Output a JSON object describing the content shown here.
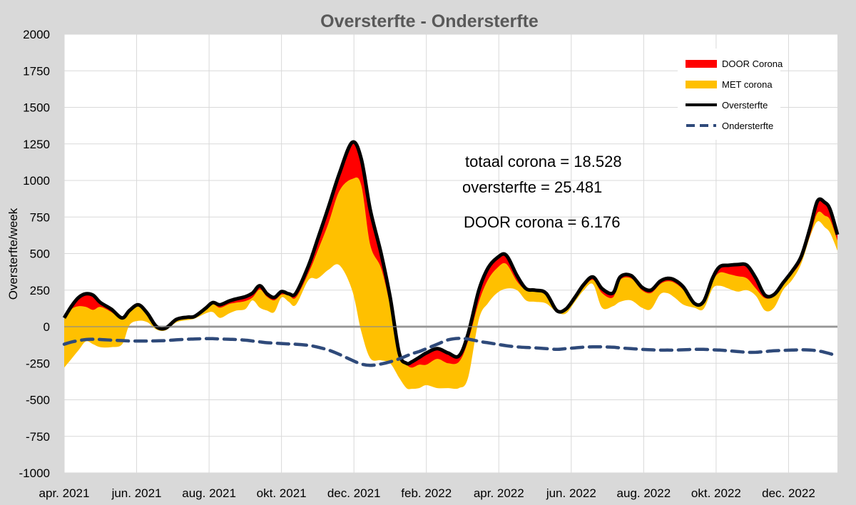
{
  "chart_data": {
    "type": "area",
    "title": "Oversterfte - Ondersterfte",
    "ylabel": "Oversterfte/week",
    "xlabel": "",
    "ylim": [
      -1000,
      2000
    ],
    "xlim": [
      0,
      21.35
    ],
    "yticks": [
      -1000,
      -750,
      -500,
      -250,
      0,
      250,
      500,
      750,
      1000,
      1250,
      1500,
      1750,
      2000
    ],
    "xticks": [
      {
        "pos": 0,
        "label": "apr. 2021"
      },
      {
        "pos": 2,
        "label": "jun. 2021"
      },
      {
        "pos": 4,
        "label": "aug. 2021"
      },
      {
        "pos": 6,
        "label": "okt. 2021"
      },
      {
        "pos": 8,
        "label": "dec. 2021"
      },
      {
        "pos": 10,
        "label": "feb. 2022"
      },
      {
        "pos": 12,
        "label": "apr. 2022"
      },
      {
        "pos": 14,
        "label": "jun. 2022"
      },
      {
        "pos": 16,
        "label": "aug. 2022"
      },
      {
        "pos": 18,
        "label": "okt. 2022"
      },
      {
        "pos": 20,
        "label": "dec. 2022"
      }
    ],
    "grid": true,
    "legend_position": "top-right",
    "legend": [
      {
        "label": "DOOR Corona",
        "color": "#ff0000",
        "style": "area"
      },
      {
        "label": "MET corona",
        "color": "#ffc000",
        "style": "area"
      },
      {
        "label": "Oversterfte",
        "color": "#000000",
        "style": "line"
      },
      {
        "label": "Ondersterfte",
        "color": "#2f4a7a",
        "style": "dashed"
      }
    ],
    "annotations": [
      "totaal corona = 18.528",
      "oversterfte = 25.481",
      "DOOR corona = 6.176"
    ],
    "x": [
      0,
      0.2,
      0.4,
      0.6,
      0.8,
      1.0,
      1.3,
      1.6,
      1.8,
      2.05,
      2.3,
      2.55,
      2.8,
      3.1,
      3.4,
      3.6,
      3.9,
      4.1,
      4.3,
      4.55,
      4.75,
      5.0,
      5.2,
      5.4,
      5.6,
      5.8,
      6.0,
      6.2,
      6.4,
      6.75,
      7.0,
      7.3,
      7.6,
      7.95,
      8.2,
      8.45,
      8.75,
      9.0,
      9.25,
      9.45,
      9.6,
      9.8,
      10.0,
      10.3,
      10.6,
      10.9,
      11.15,
      11.45,
      11.7,
      11.95,
      12.2,
      12.5,
      12.75,
      13.0,
      13.3,
      13.6,
      13.85,
      14.1,
      14.35,
      14.6,
      14.85,
      15.15,
      15.35,
      15.65,
      15.95,
      16.2,
      16.45,
      16.65,
      16.85,
      17.1,
      17.4,
      17.65,
      17.9,
      18.1,
      18.35,
      18.6,
      18.85,
      19.1,
      19.35,
      19.6,
      19.85,
      20.1,
      20.35,
      20.6,
      20.8,
      21.0,
      21.15,
      21.35
    ],
    "series": [
      {
        "name": "Oversterfte",
        "values": [
          60,
          140,
          200,
          225,
          215,
          165,
          120,
          60,
          110,
          150,
          90,
          0,
          -10,
          50,
          65,
          70,
          125,
          165,
          150,
          175,
          190,
          205,
          230,
          280,
          225,
          200,
          240,
          225,
          230,
          420,
          600,
          820,
          1050,
          1260,
          1150,
          800,
          500,
          200,
          -180,
          -250,
          -240,
          -210,
          -180,
          -150,
          -180,
          -200,
          -50,
          250,
          400,
          470,
          490,
          350,
          260,
          250,
          230,
          110,
          120,
          200,
          290,
          340,
          260,
          230,
          340,
          350,
          270,
          250,
          310,
          330,
          320,
          270,
          160,
          170,
          330,
          410,
          420,
          425,
          420,
          330,
          215,
          220,
          300,
          380,
          480,
          680,
          860,
          850,
          800,
          630
        ]
      },
      {
        "name": "MET corona",
        "values": [
          -280,
          -220,
          -160,
          -100,
          -120,
          -140,
          -140,
          -120,
          10,
          40,
          30,
          -20,
          -25,
          30,
          45,
          55,
          90,
          100,
          60,
          90,
          110,
          120,
          180,
          130,
          110,
          100,
          200,
          170,
          150,
          320,
          330,
          390,
          420,
          250,
          -30,
          -215,
          -230,
          -250,
          -350,
          -420,
          -425,
          -420,
          -400,
          -420,
          -420,
          -420,
          -350,
          50,
          160,
          230,
          260,
          250,
          180,
          170,
          160,
          100,
          90,
          170,
          250,
          290,
          130,
          140,
          170,
          180,
          130,
          120,
          220,
          230,
          200,
          150,
          130,
          120,
          260,
          280,
          260,
          240,
          250,
          210,
          110,
          130,
          250,
          320,
          430,
          620,
          720,
          680,
          640,
          520
        ]
      },
      {
        "name": "DOOR Corona",
        "values": [
          0,
          20,
          60,
          90,
          100,
          30,
          20,
          10,
          0,
          0,
          0,
          0,
          0,
          0,
          0,
          0,
          0,
          10,
          20,
          20,
          25,
          30,
          30,
          25,
          20,
          20,
          20,
          10,
          30,
          50,
          80,
          110,
          120,
          250,
          180,
          240,
          100,
          60,
          20,
          10,
          40,
          50,
          80,
          70,
          70,
          40,
          50,
          80,
          80,
          70,
          60,
          40,
          10,
          10,
          10,
          5,
          5,
          10,
          20,
          20,
          30,
          30,
          20,
          20,
          20,
          20,
          20,
          20,
          20,
          20,
          10,
          10,
          20,
          40,
          60,
          80,
          90,
          70,
          20,
          10,
          10,
          20,
          30,
          50,
          80,
          90,
          70,
          40
        ]
      },
      {
        "name": "Ondersterfte",
        "values": [
          -120,
          -105,
          -95,
          -88,
          -86,
          -88,
          -92,
          -95,
          -98,
          -98,
          -98,
          -97,
          -95,
          -90,
          -86,
          -84,
          -82,
          -82,
          -84,
          -86,
          -88,
          -92,
          -98,
          -104,
          -110,
          -112,
          -115,
          -118,
          -120,
          -128,
          -140,
          -160,
          -190,
          -230,
          -255,
          -265,
          -255,
          -240,
          -220,
          -200,
          -185,
          -170,
          -150,
          -120,
          -90,
          -80,
          -85,
          -100,
          -110,
          -120,
          -130,
          -138,
          -142,
          -145,
          -150,
          -155,
          -150,
          -145,
          -140,
          -138,
          -138,
          -140,
          -145,
          -150,
          -155,
          -158,
          -160,
          -160,
          -160,
          -158,
          -155,
          -155,
          -158,
          -160,
          -165,
          -170,
          -175,
          -175,
          -170,
          -165,
          -162,
          -160,
          -158,
          -160,
          -165,
          -175,
          -185,
          -200
        ]
      }
    ]
  }
}
